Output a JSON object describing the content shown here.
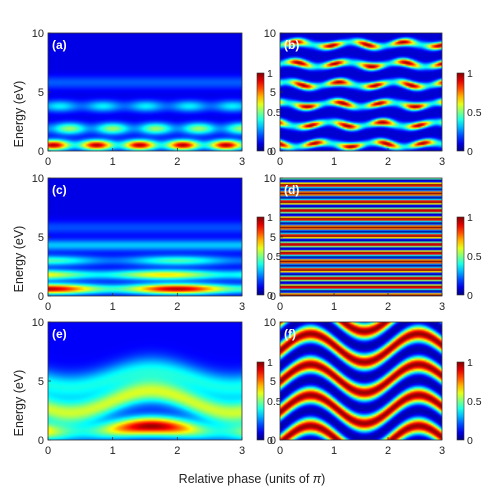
{
  "figure": {
    "ylabel": "Energy (eV)",
    "xlabel_text": "Relative phase (units of ",
    "xlabel_symbol": "π",
    "xlabel_close": ")"
  },
  "chart_data": [
    {
      "type": "heatmap",
      "panel": "(a)",
      "x_range": [
        0,
        3
      ],
      "y_range": [
        0,
        10
      ],
      "x_ticks": [
        "0",
        "1",
        "2",
        "3"
      ],
      "y_ticks": [
        "0",
        "5",
        "10"
      ],
      "colorbar": {
        "range": [
          0,
          1
        ],
        "ticks": [
          "0",
          "0.5",
          "1"
        ]
      },
      "colormap": "jet",
      "pattern": "intensity concentrated at low energy (below ~4 eV), bright lobes near 0.5 eV at phases ~0.3, 1, 1.7, 2.3; weak bands at 2 and 4 eV"
    },
    {
      "type": "heatmap",
      "panel": "(b)",
      "x_range": [
        0,
        3
      ],
      "y_range": [
        0,
        10
      ],
      "x_ticks": [
        "0",
        "1",
        "2",
        "3"
      ],
      "y_ticks": [
        "0",
        "5",
        "10"
      ],
      "colorbar": {
        "range": [
          0,
          1
        ],
        "ticks": [
          "0",
          "0.5",
          "1"
        ]
      },
      "colormap": "jet",
      "pattern": "alternating horizontal bands spanning 0-10 eV, pinched periodically along phase"
    },
    {
      "type": "heatmap",
      "panel": "(c)",
      "x_range": [
        0,
        3
      ],
      "y_range": [
        0,
        10
      ],
      "x_ticks": [
        "0",
        "1",
        "2",
        "3"
      ],
      "y_ticks": [
        "0",
        "5",
        "10"
      ],
      "colorbar": {
        "range": [
          0,
          1
        ],
        "ticks": [
          "0",
          "0.5",
          "1"
        ]
      },
      "colormap": "jet",
      "pattern": "low-energy bands below ~5 eV, maxima near phase 0 and 2"
    },
    {
      "type": "heatmap",
      "panel": "(d)",
      "x_range": [
        0,
        3
      ],
      "y_range": [
        0,
        10
      ],
      "x_ticks": [
        "0",
        "1",
        "2",
        "3"
      ],
      "y_ticks": [
        "0",
        "5",
        "10"
      ],
      "colorbar": {
        "range": [
          0,
          1
        ],
        "ticks": [
          "0",
          "0.5",
          "1"
        ]
      },
      "colormap": "jet",
      "pattern": "phase-independent horizontal stripes, about 14 periods across 0-10 eV"
    },
    {
      "type": "heatmap",
      "panel": "(e)",
      "x_range": [
        0,
        3
      ],
      "y_range": [
        0,
        10
      ],
      "x_ticks": [
        "0",
        "1",
        "2",
        "3"
      ],
      "y_ticks": [
        "0",
        "5",
        "10"
      ],
      "colorbar": {
        "range": [
          0,
          1
        ],
        "ticks": [
          "0",
          "0.5",
          "1"
        ]
      },
      "colormap": "jet",
      "pattern": "undulating bands following a sinusoid in phase, peak near phase 1.6 at ~1 eV"
    },
    {
      "type": "heatmap",
      "panel": "(f)",
      "x_range": [
        0,
        3
      ],
      "y_range": [
        0,
        10
      ],
      "x_ticks": [
        "0",
        "1",
        "2",
        "3"
      ],
      "y_ticks": [
        "0",
        "5",
        "10"
      ],
      "colorbar": {
        "range": [
          0,
          1
        ],
        "ticks": [
          "0",
          "0.5",
          "1"
        ]
      },
      "colormap": "jet",
      "pattern": "broad sinusoidal bands shifting upward with phase, full-range intensity"
    }
  ]
}
